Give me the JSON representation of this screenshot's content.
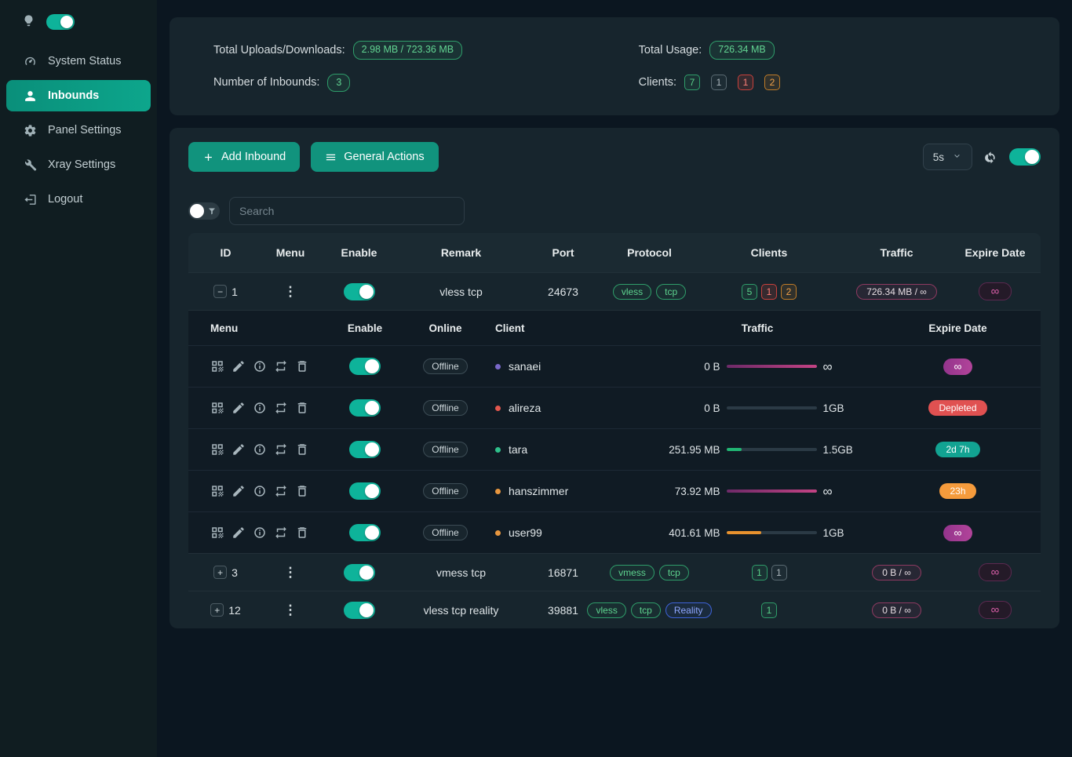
{
  "sidebar": {
    "theme_toggle_on": true,
    "items": [
      {
        "id": "system-status",
        "label": "System Status",
        "icon": "gauge-icon",
        "active": false
      },
      {
        "id": "inbounds",
        "label": "Inbounds",
        "icon": "user-icon",
        "active": true
      },
      {
        "id": "panel-settings",
        "label": "Panel Settings",
        "icon": "gear-icon",
        "active": false
      },
      {
        "id": "xray-settings",
        "label": "Xray Settings",
        "icon": "wrench-icon",
        "active": false
      },
      {
        "id": "logout",
        "label": "Logout",
        "icon": "logout-icon",
        "active": false
      }
    ]
  },
  "stats": {
    "uploads_label": "Total Uploads/Downloads:",
    "uploads_value": "2.98 MB / 723.36 MB",
    "usage_label": "Total Usage:",
    "usage_value": "726.34 MB",
    "inbounds_label": "Number of Inbounds:",
    "inbounds_value": "3",
    "clients_label": "Clients:",
    "client_counts": [
      {
        "value": "7",
        "color": "green"
      },
      {
        "value": "1",
        "color": "gray"
      },
      {
        "value": "1",
        "color": "red"
      },
      {
        "value": "2",
        "color": "orange"
      }
    ]
  },
  "toolbar": {
    "add_inbound_label": "Add Inbound",
    "general_actions_label": "General Actions",
    "refresh_interval": "5s",
    "auto_refresh_on": true
  },
  "search": {
    "placeholder": "Search"
  },
  "colors": {
    "accent_teal": "#0da68c",
    "magenta": "#c44384",
    "depleted_red": "#e05151",
    "warn_orange": "#f59b3c"
  },
  "inbound_table": {
    "headers": [
      "ID",
      "Menu",
      "Enable",
      "Remark",
      "Port",
      "Protocol",
      "Clients",
      "Traffic",
      "Expire Date"
    ],
    "rows": [
      {
        "id": "1",
        "expanded": true,
        "enabled": true,
        "remark": "vless tcp",
        "port": "24673",
        "protocols": [
          {
            "label": "vless",
            "color": "green"
          },
          {
            "label": "tcp",
            "color": "green"
          }
        ],
        "clients": [
          {
            "value": "5",
            "color": "green"
          },
          {
            "value": "1",
            "color": "red"
          },
          {
            "value": "2",
            "color": "orange"
          }
        ],
        "traffic": "726.34 MB / ∞",
        "expire": "∞"
      },
      {
        "id": "3",
        "expanded": false,
        "enabled": true,
        "remark": "vmess tcp",
        "port": "16871",
        "protocols": [
          {
            "label": "vmess",
            "color": "green"
          },
          {
            "label": "tcp",
            "color": "green"
          }
        ],
        "clients": [
          {
            "value": "1",
            "color": "green"
          },
          {
            "value": "1",
            "color": "gray"
          }
        ],
        "traffic": "0 B / ∞",
        "expire": "∞"
      },
      {
        "id": "12",
        "expanded": false,
        "enabled": true,
        "remark": "vless tcp reality",
        "port": "39881",
        "protocols": [
          {
            "label": "vless",
            "color": "green"
          },
          {
            "label": "tcp",
            "color": "green"
          },
          {
            "label": "Reality",
            "color": "blue"
          }
        ],
        "clients": [
          {
            "value": "1",
            "color": "green"
          }
        ],
        "traffic": "0 B / ∞",
        "expire": "∞"
      }
    ]
  },
  "client_table": {
    "headers": [
      "Menu",
      "Enable",
      "Online",
      "Client",
      "Traffic",
      "Expire Date"
    ],
    "menu_icons": [
      "qr-code-icon",
      "edit-icon",
      "info-icon",
      "reset-traffic-icon",
      "delete-icon"
    ],
    "rows": [
      {
        "name": "sanaei",
        "dot_color": "purple",
        "online": "Offline",
        "enabled": true,
        "used": "0 B",
        "total": "∞",
        "progress_pct": 100,
        "bar_color": "magenta",
        "expire_label": "∞",
        "expire_color": "purple"
      },
      {
        "name": "alireza",
        "dot_color": "red",
        "online": "Offline",
        "enabled": true,
        "used": "0 B",
        "total": "1GB",
        "progress_pct": 0,
        "bar_color": "green",
        "expire_label": "Depleted",
        "expire_color": "red"
      },
      {
        "name": "tara",
        "dot_color": "green",
        "online": "Offline",
        "enabled": true,
        "used": "251.95 MB",
        "total": "1.5GB",
        "progress_pct": 17,
        "bar_color": "green",
        "expire_label": "2d 7h",
        "expire_color": "teal"
      },
      {
        "name": "hanszimmer",
        "dot_color": "orange",
        "online": "Offline",
        "enabled": true,
        "used": "73.92 MB",
        "total": "∞",
        "progress_pct": 100,
        "bar_color": "magenta",
        "expire_label": "23h",
        "expire_color": "orange"
      },
      {
        "name": "user99",
        "dot_color": "orange",
        "online": "Offline",
        "enabled": true,
        "used": "401.61 MB",
        "total": "1GB",
        "progress_pct": 39,
        "bar_color": "orange",
        "expire_label": "∞",
        "expire_color": "purple"
      }
    ]
  }
}
